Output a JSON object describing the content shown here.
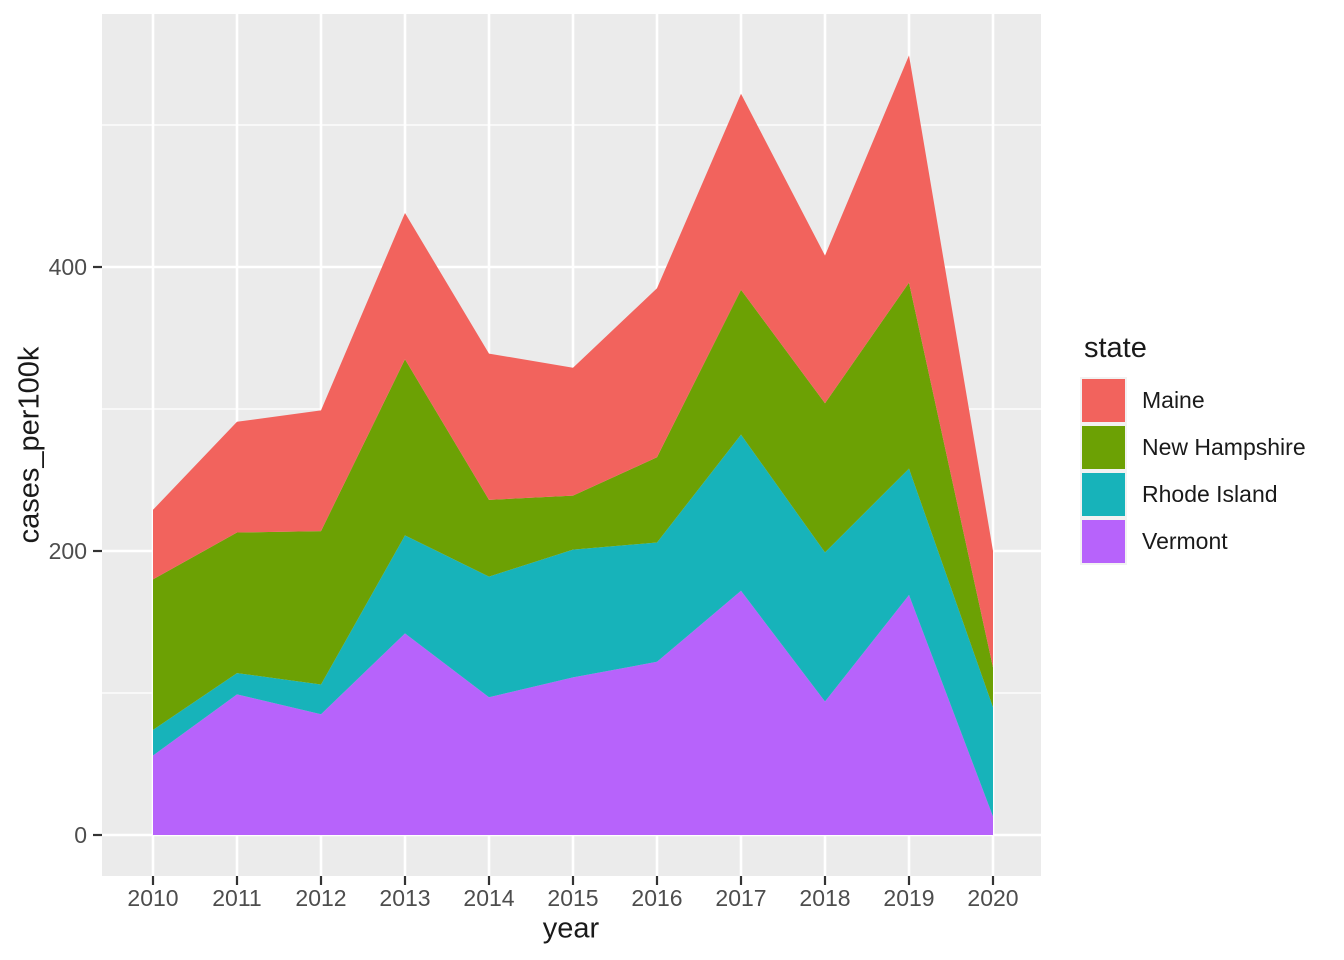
{
  "figure": {
    "background": "#ffffff",
    "panel_background": "#EBEBEB",
    "grid_color": "#ffffff",
    "tick_color": "#333333",
    "tick_label_color": "#4D4D4D",
    "axis_title_color": "#1a1a1a"
  },
  "chart_data": {
    "type": "area",
    "stacked": true,
    "title": "",
    "xlabel": "year",
    "ylabel": "cases_per100k",
    "x": [
      2010,
      2011,
      2012,
      2013,
      2014,
      2015,
      2016,
      2017,
      2018,
      2019,
      2020
    ],
    "xticks": [
      "2010",
      "2011",
      "2012",
      "2013",
      "2014",
      "2015",
      "2016",
      "2017",
      "2018",
      "2019",
      "2020"
    ],
    "yticks": [
      0,
      200,
      400
    ],
    "yticks_minor": [
      100,
      300,
      500
    ],
    "ylim": [
      -29,
      578
    ],
    "grid": true,
    "legend_position": "right",
    "stack_order_bottom_to_top": [
      "Vermont",
      "Rhode Island",
      "New Hampshire",
      "Maine"
    ],
    "series": [
      {
        "name": "Maine",
        "color": "#F2635D",
        "values": [
          49,
          78,
          85,
          103,
          103,
          90,
          119,
          138,
          104,
          160,
          82
        ]
      },
      {
        "name": "New Hampshire",
        "color": "#6CA104",
        "values": [
          106,
          99,
          108,
          124,
          54,
          38,
          60,
          102,
          105,
          131,
          28
        ]
      },
      {
        "name": "Rhode Island",
        "color": "#17B3BA",
        "values": [
          18,
          15,
          21,
          69,
          85,
          90,
          84,
          110,
          105,
          89,
          77
        ]
      },
      {
        "name": "Vermont",
        "color": "#B763FB",
        "values": [
          56,
          99,
          85,
          142,
          97,
          111,
          122,
          172,
          94,
          169,
          13
        ]
      }
    ],
    "cumulative_tops_bottom_to_top": {
      "Vermont": [
        56,
        99,
        85,
        142,
        97,
        111,
        122,
        172,
        94,
        169,
        13
      ],
      "Rhode Island": [
        74,
        114,
        106,
        211,
        182,
        201,
        206,
        282,
        199,
        258,
        90
      ],
      "New Hampshire": [
        180,
        213,
        214,
        335,
        236,
        239,
        266,
        384,
        304,
        389,
        118
      ],
      "Maine": [
        229,
        291,
        299,
        438,
        339,
        329,
        385,
        522,
        408,
        549,
        200
      ]
    }
  },
  "legend": {
    "title": "state"
  }
}
